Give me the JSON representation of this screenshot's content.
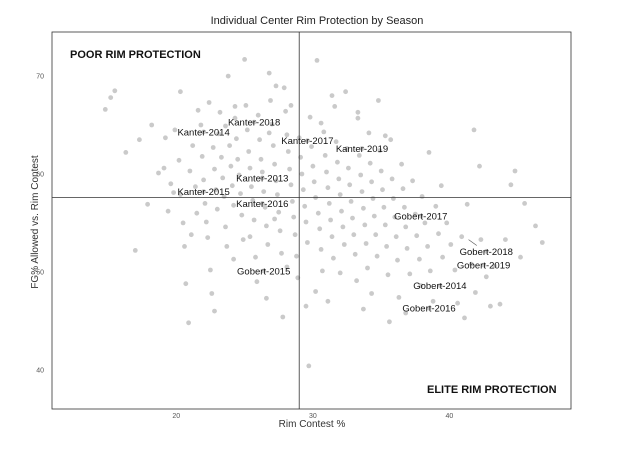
{
  "chart_data": {
    "type": "scatter",
    "title": "Individual Center Rim Protection by Season",
    "xlabel": "Rim Contest %",
    "ylabel": "FG% Allowed vs. Rim Contest",
    "xlim": [
      10.9,
      48.9
    ],
    "ylim": [
      36.0,
      74.5
    ],
    "x_ticks": [
      20,
      30,
      40
    ],
    "y_ticks": [
      40,
      50,
      60,
      70
    ],
    "x_tick_labels": [
      "20",
      "30",
      "40"
    ],
    "y_tick_labels": [
      "40",
      "50",
      "60",
      "70"
    ],
    "reference_lines": {
      "x": 29.0,
      "y": 57.6
    },
    "grid": false,
    "quadrant_labels": {
      "top_left": "POOR RIM PROTECTION",
      "bottom_right": "ELITE RIM PROTECTION"
    },
    "highlighted": [
      {
        "label": "Kanter-2014",
        "x": 22.0,
        "y": 64.3
      },
      {
        "label": "Kanter-2018",
        "x": 25.7,
        "y": 65.3
      },
      {
        "label": "Kanter-2017",
        "x": 29.6,
        "y": 63.4
      },
      {
        "label": "Kanter-2019",
        "x": 33.6,
        "y": 62.6
      },
      {
        "label": "Kanter-2013",
        "x": 26.3,
        "y": 59.6
      },
      {
        "label": "Kanter-2015",
        "x": 22.0,
        "y": 58.2
      },
      {
        "label": "Kanter-2016",
        "x": 26.3,
        "y": 57.0
      },
      {
        "label": "Gobert-2017",
        "x": 37.9,
        "y": 55.7
      },
      {
        "label": "Gobert-2018",
        "x": 42.7,
        "y": 52.1
      },
      {
        "label": "Gobert-2019",
        "x": 42.5,
        "y": 50.7
      },
      {
        "label": "Gobert-2014",
        "x": 39.3,
        "y": 48.6
      },
      {
        "label": "Gobert-2015",
        "x": 26.4,
        "y": 50.1
      },
      {
        "label": "Gobert-2016",
        "x": 38.5,
        "y": 46.3
      }
    ],
    "points": [
      [
        14.8,
        66.6
      ],
      [
        15.2,
        67.8
      ],
      [
        15.5,
        68.5
      ],
      [
        16.3,
        62.2
      ],
      [
        17.0,
        52.2
      ],
      [
        17.9,
        56.9
      ],
      [
        18.2,
        65.0
      ],
      [
        18.7,
        60.1
      ],
      [
        19.2,
        63.7
      ],
      [
        19.4,
        56.2
      ],
      [
        19.6,
        59.0
      ],
      [
        19.9,
        64.5
      ],
      [
        20.2,
        61.4
      ],
      [
        20.3,
        57.9
      ],
      [
        20.5,
        55.0
      ],
      [
        20.6,
        52.6
      ],
      [
        20.7,
        48.8
      ],
      [
        20.9,
        44.8
      ],
      [
        21.0,
        60.3
      ],
      [
        21.2,
        62.9
      ],
      [
        21.4,
        58.7
      ],
      [
        21.5,
        56.0
      ],
      [
        21.6,
        66.5
      ],
      [
        21.8,
        65.0
      ],
      [
        21.9,
        61.8
      ],
      [
        22.0,
        59.4
      ],
      [
        22.1,
        57.0
      ],
      [
        22.2,
        55.1
      ],
      [
        22.3,
        53.5
      ],
      [
        22.5,
        50.2
      ],
      [
        22.6,
        47.8
      ],
      [
        22.7,
        62.7
      ],
      [
        22.8,
        60.5
      ],
      [
        22.9,
        58.4
      ],
      [
        23.0,
        56.4
      ],
      [
        23.1,
        64.1
      ],
      [
        23.2,
        66.3
      ],
      [
        23.3,
        61.7
      ],
      [
        23.4,
        59.6
      ],
      [
        23.5,
        57.7
      ],
      [
        23.6,
        54.6
      ],
      [
        23.7,
        52.6
      ],
      [
        23.8,
        70.0
      ],
      [
        23.9,
        62.9
      ],
      [
        24.0,
        60.8
      ],
      [
        24.1,
        58.8
      ],
      [
        24.2,
        56.8
      ],
      [
        24.3,
        65.7
      ],
      [
        24.4,
        63.6
      ],
      [
        24.5,
        61.5
      ],
      [
        24.6,
        59.9
      ],
      [
        24.7,
        58.0
      ],
      [
        24.8,
        55.8
      ],
      [
        24.9,
        53.3
      ],
      [
        25.0,
        71.7
      ],
      [
        25.1,
        67.0
      ],
      [
        25.2,
        64.5
      ],
      [
        25.3,
        62.3
      ],
      [
        25.4,
        60.6
      ],
      [
        25.5,
        58.7
      ],
      [
        25.6,
        57.3
      ],
      [
        25.7,
        55.3
      ],
      [
        25.8,
        51.5
      ],
      [
        25.9,
        49.0
      ],
      [
        26.0,
        66.0
      ],
      [
        26.1,
        63.5
      ],
      [
        26.2,
        61.5
      ],
      [
        26.3,
        60.2
      ],
      [
        26.4,
        58.2
      ],
      [
        26.5,
        56.6
      ],
      [
        26.6,
        54.7
      ],
      [
        26.7,
        52.8
      ],
      [
        26.8,
        70.3
      ],
      [
        26.9,
        67.5
      ],
      [
        27.0,
        65.1
      ],
      [
        27.1,
        62.9
      ],
      [
        27.2,
        61.0
      ],
      [
        27.3,
        59.3
      ],
      [
        27.4,
        57.9
      ],
      [
        27.5,
        56.1
      ],
      [
        27.6,
        54.2
      ],
      [
        27.7,
        51.9
      ],
      [
        27.8,
        45.4
      ],
      [
        27.9,
        68.8
      ],
      [
        28.0,
        66.4
      ],
      [
        28.1,
        64.0
      ],
      [
        28.2,
        62.3
      ],
      [
        28.3,
        60.5
      ],
      [
        28.4,
        58.9
      ],
      [
        28.5,
        57.2
      ],
      [
        28.6,
        55.6
      ],
      [
        28.7,
        53.8
      ],
      [
        28.8,
        51.6
      ],
      [
        28.9,
        49.4
      ],
      [
        29.0,
        63.7
      ],
      [
        29.1,
        61.7
      ],
      [
        29.2,
        60.0
      ],
      [
        29.3,
        58.4
      ],
      [
        29.4,
        56.7
      ],
      [
        29.5,
        55.1
      ],
      [
        29.6,
        53.0
      ],
      [
        29.7,
        40.4
      ],
      [
        29.8,
        65.8
      ],
      [
        29.9,
        62.8
      ],
      [
        30.0,
        60.8
      ],
      [
        30.1,
        59.2
      ],
      [
        30.2,
        57.6
      ],
      [
        30.3,
        71.6
      ],
      [
        30.4,
        56.0
      ],
      [
        30.5,
        54.4
      ],
      [
        30.6,
        52.3
      ],
      [
        30.7,
        50.1
      ],
      [
        30.8,
        64.3
      ],
      [
        30.9,
        61.9
      ],
      [
        31.0,
        60.2
      ],
      [
        31.1,
        58.6
      ],
      [
        31.2,
        57.0
      ],
      [
        31.3,
        55.3
      ],
      [
        31.4,
        53.6
      ],
      [
        31.5,
        51.4
      ],
      [
        31.6,
        66.9
      ],
      [
        31.7,
        63.3
      ],
      [
        31.8,
        61.2
      ],
      [
        31.9,
        59.5
      ],
      [
        32.0,
        57.9
      ],
      [
        32.1,
        56.2
      ],
      [
        32.2,
        54.6
      ],
      [
        32.3,
        52.8
      ],
      [
        32.4,
        68.4
      ],
      [
        32.5,
        62.6
      ],
      [
        32.6,
        60.6
      ],
      [
        32.7,
        58.9
      ],
      [
        32.8,
        57.2
      ],
      [
        32.9,
        55.5
      ],
      [
        33.0,
        53.8
      ],
      [
        33.1,
        51.8
      ],
      [
        33.2,
        49.1
      ],
      [
        33.3,
        65.7
      ],
      [
        33.4,
        61.9
      ],
      [
        33.5,
        59.9
      ],
      [
        33.6,
        58.2
      ],
      [
        33.7,
        56.5
      ],
      [
        33.8,
        54.8
      ],
      [
        33.9,
        52.9
      ],
      [
        34.0,
        50.4
      ],
      [
        34.1,
        64.2
      ],
      [
        34.2,
        61.1
      ],
      [
        34.3,
        59.2
      ],
      [
        34.4,
        57.5
      ],
      [
        34.5,
        55.7
      ],
      [
        34.6,
        53.8
      ],
      [
        34.7,
        51.6
      ],
      [
        34.8,
        67.5
      ],
      [
        34.9,
        62.4
      ],
      [
        35.0,
        60.3
      ],
      [
        35.1,
        58.4
      ],
      [
        35.2,
        56.6
      ],
      [
        35.3,
        54.8
      ],
      [
        35.4,
        52.6
      ],
      [
        35.5,
        49.7
      ],
      [
        35.6,
        44.9
      ],
      [
        35.7,
        63.5
      ],
      [
        35.8,
        59.5
      ],
      [
        35.9,
        57.5
      ],
      [
        36.0,
        55.6
      ],
      [
        36.1,
        53.6
      ],
      [
        36.2,
        51.2
      ],
      [
        36.3,
        47.4
      ],
      [
        36.5,
        61.0
      ],
      [
        36.6,
        58.5
      ],
      [
        36.7,
        56.6
      ],
      [
        36.8,
        54.6
      ],
      [
        36.9,
        52.4
      ],
      [
        37.1,
        49.8
      ],
      [
        37.3,
        59.3
      ],
      [
        37.5,
        55.9
      ],
      [
        37.6,
        53.7
      ],
      [
        37.8,
        51.3
      ],
      [
        38.0,
        57.7
      ],
      [
        38.2,
        55.0
      ],
      [
        38.4,
        52.6
      ],
      [
        38.6,
        50.1
      ],
      [
        38.8,
        47.0
      ],
      [
        39.0,
        56.7
      ],
      [
        39.2,
        53.9
      ],
      [
        39.5,
        51.5
      ],
      [
        39.8,
        55.0
      ],
      [
        40.1,
        52.8
      ],
      [
        40.4,
        50.2
      ],
      [
        40.6,
        46.8
      ],
      [
        40.9,
        53.6
      ],
      [
        41.1,
        45.3
      ],
      [
        41.3,
        56.9
      ],
      [
        41.6,
        50.8
      ],
      [
        41.9,
        47.9
      ],
      [
        42.3,
        53.3
      ],
      [
        42.7,
        49.5
      ],
      [
        43.0,
        46.5
      ],
      [
        43.3,
        50.6
      ],
      [
        43.7,
        46.7
      ],
      [
        44.1,
        53.3
      ],
      [
        44.5,
        58.9
      ],
      [
        44.8,
        60.3
      ],
      [
        45.2,
        51.5
      ],
      [
        45.5,
        57.0
      ],
      [
        46.3,
        54.7
      ],
      [
        46.8,
        53.0
      ],
      [
        41.8,
        64.5
      ],
      [
        17.3,
        63.5
      ],
      [
        20.3,
        68.4
      ],
      [
        22.4,
        67.3
      ],
      [
        24.3,
        66.9
      ],
      [
        26.8,
        64.2
      ],
      [
        28.4,
        67.0
      ],
      [
        31.4,
        68.0
      ],
      [
        33.3,
        66.3
      ],
      [
        19.1,
        60.6
      ],
      [
        23.6,
        64.9
      ],
      [
        27.3,
        69.0
      ],
      [
        30.6,
        65.2
      ],
      [
        35.3,
        63.9
      ],
      [
        39.4,
        58.8
      ],
      [
        42.2,
        60.8
      ],
      [
        38.5,
        62.2
      ],
      [
        21.1,
        53.8
      ],
      [
        24.2,
        51.3
      ],
      [
        26.6,
        47.3
      ],
      [
        30.2,
        48.0
      ],
      [
        32.0,
        49.9
      ],
      [
        34.3,
        47.8
      ],
      [
        36.8,
        45.8
      ],
      [
        37.9,
        48.6
      ],
      [
        19.8,
        58.1
      ],
      [
        25.4,
        53.6
      ],
      [
        28.1,
        50.5
      ],
      [
        31.1,
        47.0
      ],
      [
        33.7,
        46.2
      ],
      [
        29.5,
        46.5
      ],
      [
        22.8,
        46.0
      ],
      [
        27.2,
        55.4
      ]
    ]
  }
}
